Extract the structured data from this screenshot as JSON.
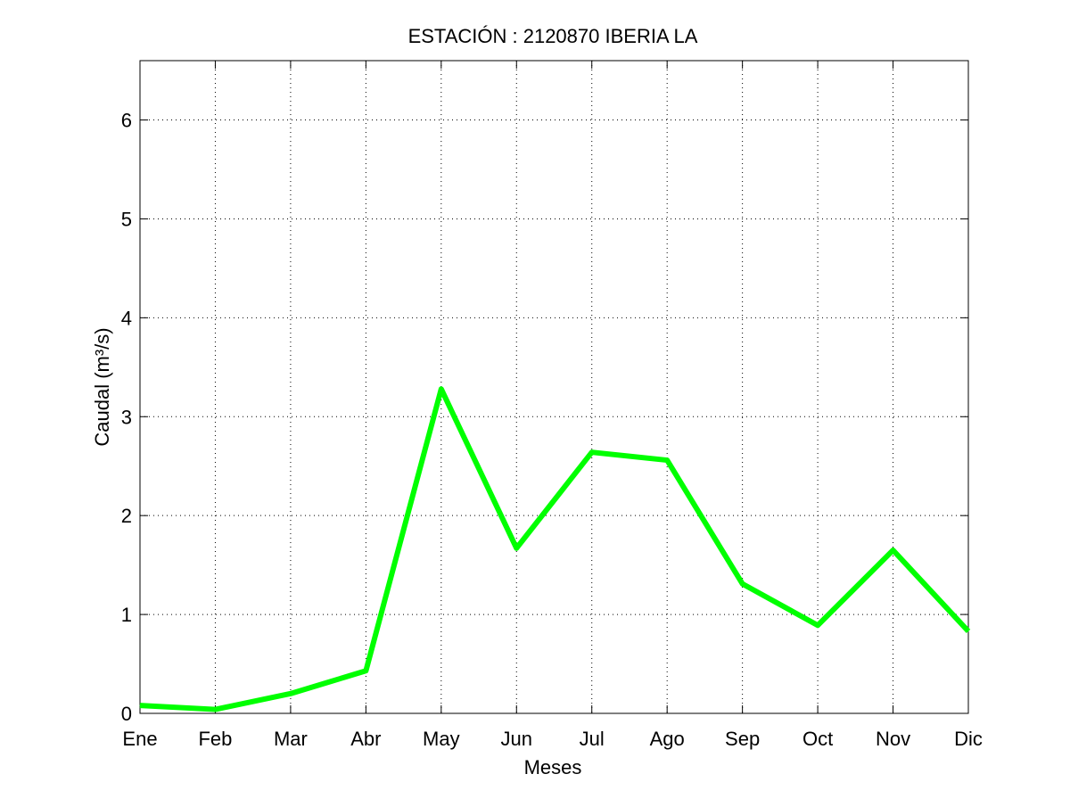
{
  "chart_data": {
    "type": "line",
    "title": "ESTACIÓN :  2120870  IBERIA LA",
    "xlabel": "Meses",
    "ylabel": "Caudal (m³/s)",
    "categories": [
      "Ene",
      "Feb",
      "Mar",
      "Abr",
      "May",
      "Jun",
      "Jul",
      "Ago",
      "Sep",
      "Oct",
      "Nov",
      "Dic"
    ],
    "series": [
      {
        "values": [
          0.08,
          0.04,
          0.2,
          0.43,
          3.28,
          1.67,
          2.64,
          2.56,
          1.31,
          0.89,
          1.65,
          0.83
        ],
        "color": "#00ff00"
      }
    ],
    "ylim": [
      0,
      6.6
    ],
    "yticks": [
      0,
      1,
      2,
      3,
      4,
      5,
      6
    ],
    "grid": true
  }
}
